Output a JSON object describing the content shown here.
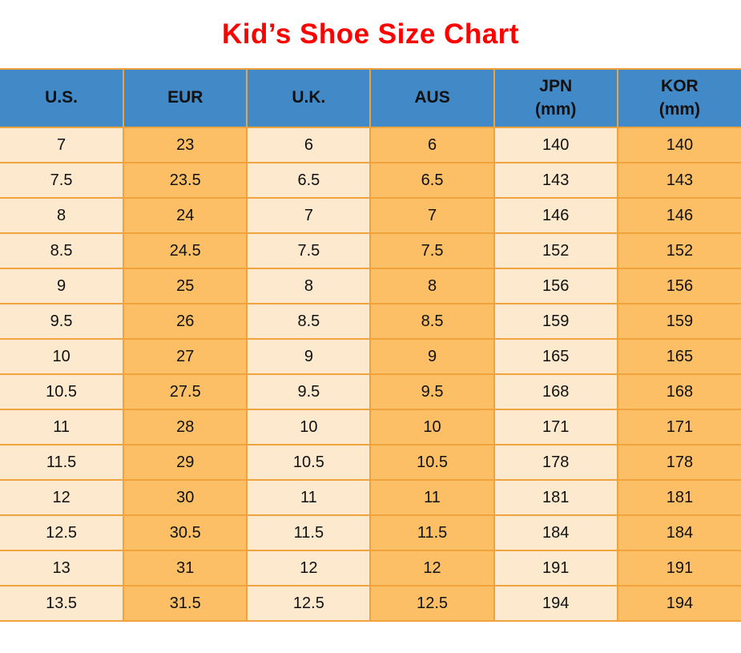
{
  "title": "Kid’s Shoe Size Chart",
  "colors": {
    "title-red": "#ff0000",
    "header-blue": "#4289c7",
    "cell-cream": "#fce9ce",
    "cell-orange": "#fdbf66",
    "grid-orange": "#f0a33c",
    "text-dark": "#111111"
  },
  "table": {
    "headers": [
      {
        "label": "U.S.",
        "sublabel": ""
      },
      {
        "label": "EUR",
        "sublabel": ""
      },
      {
        "label": "U.K.",
        "sublabel": ""
      },
      {
        "label": "AUS",
        "sublabel": ""
      },
      {
        "label": "JPN",
        "sublabel": "(mm)"
      },
      {
        "label": "KOR",
        "sublabel": "(mm)"
      }
    ]
  },
  "chart_data": {
    "type": "table",
    "title": "Kid’s Shoe Size Chart",
    "columns": [
      "U.S.",
      "EUR",
      "U.K.",
      "AUS",
      "JPN (mm)",
      "KOR (mm)"
    ],
    "rows": [
      [
        "7",
        "23",
        "6",
        "6",
        "140",
        "140"
      ],
      [
        "7.5",
        "23.5",
        "6.5",
        "6.5",
        "143",
        "143"
      ],
      [
        "8",
        "24",
        "7",
        "7",
        "146",
        "146"
      ],
      [
        "8.5",
        "24.5",
        "7.5",
        "7.5",
        "152",
        "152"
      ],
      [
        "9",
        "25",
        "8",
        "8",
        "156",
        "156"
      ],
      [
        "9.5",
        "26",
        "8.5",
        "8.5",
        "159",
        "159"
      ],
      [
        "10",
        "27",
        "9",
        "9",
        "165",
        "165"
      ],
      [
        "10.5",
        "27.5",
        "9.5",
        "9.5",
        "168",
        "168"
      ],
      [
        "11",
        "28",
        "10",
        "10",
        "171",
        "171"
      ],
      [
        "11.5",
        "29",
        "10.5",
        "10.5",
        "178",
        "178"
      ],
      [
        "12",
        "30",
        "11",
        "11",
        "181",
        "181"
      ],
      [
        "12.5",
        "30.5",
        "11.5",
        "11.5",
        "184",
        "184"
      ],
      [
        "13",
        "31",
        "12",
        "12",
        "191",
        "191"
      ],
      [
        "13.5",
        "31.5",
        "12.5",
        "12.5",
        "194",
        "194"
      ]
    ]
  }
}
